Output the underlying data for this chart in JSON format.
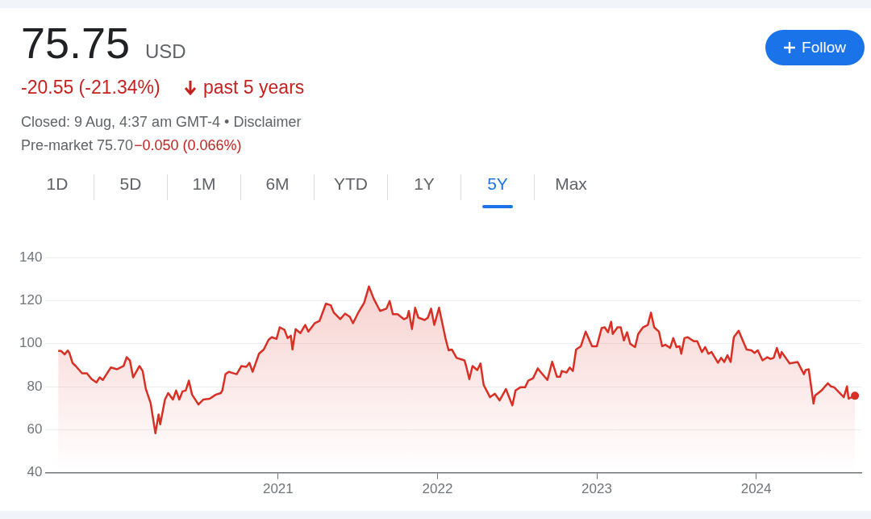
{
  "chart_data": {
    "type": "area",
    "title": "75.75",
    "subtitle": "USD",
    "annotations": [
      "-20.55 (-21.34%)",
      "past 5 years",
      "Closed: 9 Aug, 4:37 am GMT-4 • Disclaimer",
      "Pre-market 75.70",
      "−0.050 (0.066%)",
      "Follow",
      "1D",
      "5D",
      "1M",
      "6M",
      "YTD",
      "1Y",
      "5Y",
      "Max"
    ],
    "xlim": [
      2019.54,
      2024.66
    ],
    "xticks": [
      2021,
      2022,
      2023,
      2024
    ],
    "ylim": [
      40,
      140
    ],
    "yticks": [
      40,
      60,
      80,
      100,
      120,
      140
    ],
    "grid": "y",
    "series": [
      {
        "color": "#d93025",
        "x": [
          2019.62,
          2019.64,
          2019.66,
          2019.68,
          2019.69,
          2019.71,
          2019.73,
          2019.77,
          2019.8,
          2019.83,
          2019.86,
          2019.88,
          2019.9,
          2019.92,
          2019.95,
          2019.99,
          2020.03,
          2020.05,
          2020.07,
          2020.09,
          2020.13,
          2020.15,
          2020.17,
          2020.2,
          2020.23,
          2020.25,
          2020.26,
          2020.29,
          2020.31,
          2020.34,
          2020.36,
          2020.38,
          2020.4,
          2020.42,
          2020.44,
          2020.46,
          2020.5,
          2020.53,
          2020.57,
          2020.61,
          2020.64,
          2020.65,
          2020.67,
          2020.69,
          2020.74,
          2020.77,
          2020.8,
          2020.82,
          2020.84,
          2020.88,
          2020.91,
          2020.94,
          2020.96,
          2020.99,
          2021.01,
          2021.04,
          2021.06,
          2021.08,
          2021.09,
          2021.11,
          2021.14,
          2021.17,
          2021.19,
          2021.23,
          2021.26,
          2021.3,
          2021.33,
          2021.35,
          2021.39,
          2021.42,
          2021.45,
          2021.47,
          2021.5,
          2021.54,
          2021.57,
          2021.6,
          2021.64,
          2021.68,
          2021.7,
          2021.72,
          2021.75,
          2021.79,
          2021.81,
          2021.82,
          2021.84,
          2021.86,
          2021.88,
          2021.92,
          2021.94,
          2021.96,
          2021.98,
          2022.01,
          2022.05,
          2022.07,
          2022.09,
          2022.12,
          2022.17,
          2022.18,
          2022.2,
          2022.22,
          2022.25,
          2022.27,
          2022.29,
          2022.33,
          2022.36,
          2022.39,
          2022.43,
          2022.47,
          2022.49,
          2022.52,
          2022.55,
          2022.57,
          2022.6,
          2022.63,
          2022.65,
          2022.69,
          2022.72,
          2022.75,
          2022.77,
          2022.78,
          2022.81,
          2022.83,
          2022.85,
          2022.87,
          2022.9,
          2022.93,
          2022.97,
          2023.0,
          2023.03,
          2023.05,
          2023.07,
          2023.09,
          2023.1,
          2023.13,
          2023.15,
          2023.17,
          2023.19,
          2023.21,
          2023.24,
          2023.26,
          2023.29,
          2023.32,
          2023.34,
          2023.36,
          2023.39,
          2023.41,
          2023.43,
          2023.46,
          2023.48,
          2023.5,
          2023.52,
          2023.53,
          2023.55,
          2023.57,
          2023.61,
          2023.63,
          2023.66,
          2023.68,
          2023.7,
          2023.72,
          2023.76,
          2023.78,
          2023.8,
          2023.82,
          2023.84,
          2023.86,
          2023.89,
          2023.94,
          2023.97,
          2023.99,
          2024.01,
          2024.04,
          2024.07,
          2024.09,
          2024.11,
          2024.13,
          2024.15,
          2024.16,
          2024.21,
          2024.26,
          2024.3,
          2024.31,
          2024.33,
          2024.36,
          2024.37,
          2024.41,
          2024.45,
          2024.47,
          2024.49,
          2024.55,
          2024.57,
          2024.58,
          2024.62
        ],
        "values": [
          96.7,
          96.5,
          95,
          96.8,
          95.7,
          91,
          89.6,
          86.2,
          86.2,
          83.5,
          82,
          84.3,
          83.1,
          85.4,
          88.9,
          88.1,
          89.6,
          93.7,
          92.2,
          84.3,
          89.6,
          87.3,
          78.9,
          72.4,
          58.3,
          67.1,
          62.5,
          74,
          77,
          74,
          78.2,
          74,
          77.8,
          78.2,
          82.8,
          76.3,
          71.7,
          74,
          74.4,
          76.3,
          77,
          78.2,
          85.8,
          86.9,
          85.8,
          89.6,
          89.2,
          91.1,
          86.9,
          95.3,
          97.3,
          101.8,
          103,
          102.2,
          107.6,
          106.4,
          102.6,
          103.7,
          97.3,
          106.8,
          104.9,
          108.7,
          105.6,
          109.5,
          110.6,
          118.6,
          117.9,
          114.4,
          111.4,
          114,
          112.5,
          109.5,
          114,
          119,
          126.6,
          120.9,
          115.2,
          116.3,
          119.8,
          113.7,
          113.7,
          111.4,
          112.1,
          115.2,
          106.8,
          116.7,
          112.1,
          111,
          112.1,
          116.3,
          108.7,
          116.7,
          102.6,
          96.9,
          97.3,
          93.4,
          92.2,
          89.6,
          83.5,
          89.6,
          87.7,
          90.8,
          80.8,
          75.1,
          76.7,
          73.6,
          78.9,
          71.3,
          78.2,
          79.7,
          79.7,
          82.8,
          83.9,
          88.5,
          86.6,
          83.1,
          91.6,
          84.6,
          84.6,
          87.3,
          86.6,
          88.9,
          87.3,
          97.3,
          98.8,
          105.6,
          98.8,
          98.8,
          107.2,
          107.6,
          105.3,
          110.2,
          104.5,
          107.6,
          107.6,
          101.5,
          105.3,
          99.9,
          98.4,
          104.5,
          107.6,
          108.7,
          114.4,
          107.6,
          105.6,
          98.8,
          99.5,
          98,
          102.6,
          98.4,
          98.8,
          95.3,
          102.6,
          103,
          101.1,
          101.1,
          96.1,
          98.4,
          95.3,
          96.1,
          91.1,
          93.4,
          91.5,
          94.6,
          91.5,
          103,
          106,
          97.3,
          96.9,
          95.7,
          96.9,
          92.2,
          93.7,
          92.9,
          93.4,
          98,
          93.4,
          96.1,
          90.8,
          91.5,
          85.8,
          87.7,
          88.1,
          72.1,
          75.9,
          78.2,
          81.6,
          80.1,
          79.7,
          75.1,
          80.1,
          74.4,
          75.75
        ]
      }
    ]
  }
}
